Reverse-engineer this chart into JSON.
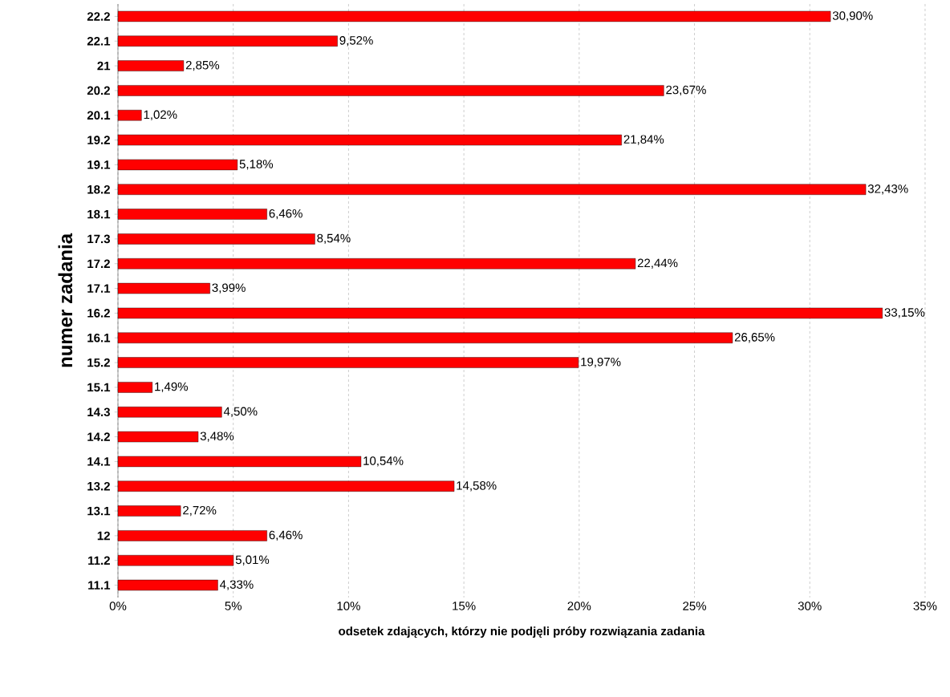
{
  "chart_data": {
    "type": "bar",
    "orientation": "horizontal",
    "xlabel": "odsetek zdających, którzy nie podjęli próby rozwiązania zadania",
    "ylabel": "numer zadania",
    "categories": [
      "22.2",
      "22.1",
      "21",
      "20.2",
      "20.1",
      "19.2",
      "19.1",
      "18.2",
      "18.1",
      "17.3",
      "17.2",
      "17.1",
      "16.2",
      "16.1",
      "15.2",
      "15.1",
      "14.3",
      "14.2",
      "14.1",
      "13.2",
      "13.1",
      "12",
      "11.2",
      "11.1"
    ],
    "values": [
      30.9,
      9.52,
      2.85,
      23.67,
      1.02,
      21.84,
      5.18,
      32.43,
      6.46,
      8.54,
      22.44,
      3.99,
      33.15,
      26.65,
      19.97,
      1.49,
      4.5,
      3.48,
      10.54,
      14.58,
      2.72,
      6.46,
      5.01,
      4.33
    ],
    "value_labels": [
      "30,90%",
      "9,52%",
      "2,85%",
      "23,67%",
      "1,02%",
      "21,84%",
      "5,18%",
      "32,43%",
      "6,46%",
      "8,54%",
      "22,44%",
      "3,99%",
      "33,15%",
      "26,65%",
      "19,97%",
      "1,49%",
      "4,50%",
      "3,48%",
      "10,54%",
      "14,58%",
      "2,72%",
      "6,46%",
      "5,01%",
      "4,33%"
    ],
    "color": "#ff0000",
    "xlim": [
      0,
      35
    ],
    "xticks": [
      {
        "value": 0,
        "label": "0%"
      },
      {
        "value": 5,
        "label": "5%"
      },
      {
        "value": 10,
        "label": "10%"
      },
      {
        "value": 15,
        "label": "15%"
      },
      {
        "value": 20,
        "label": "20%"
      },
      {
        "value": 25,
        "label": "25%"
      },
      {
        "value": 30,
        "label": "30%"
      },
      {
        "value": 35,
        "label": "35%"
      }
    ],
    "grid": "x"
  }
}
